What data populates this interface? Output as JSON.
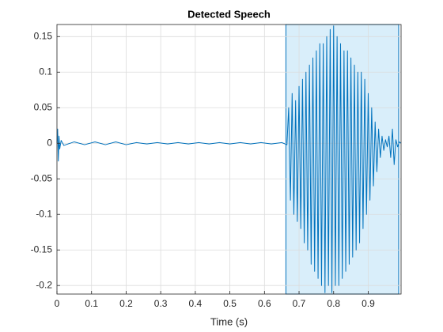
{
  "chart_data": {
    "type": "line",
    "title": "Detected Speech",
    "xlabel": "Time (s)",
    "color": "#0072bd",
    "grid": true,
    "speech_region": [
      0.662,
      0.988
    ],
    "region_color": "#d9eefa",
    "xlim": [
      0,
      0.995
    ],
    "xticks": [
      0,
      0.1,
      0.2,
      0.3,
      0.4,
      0.5,
      0.6,
      0.7,
      0.8,
      0.9
    ],
    "ylim": [
      -0.212,
      0.167
    ],
    "yticks": [
      -0.2,
      -0.15,
      -0.1,
      -0.05,
      0,
      0.05,
      0.1,
      0.15
    ],
    "x": [
      0,
      0.002,
      0.004,
      0.006,
      0.008,
      0.012,
      0.02,
      0.05,
      0.08,
      0.11,
      0.14,
      0.17,
      0.2,
      0.23,
      0.26,
      0.29,
      0.32,
      0.35,
      0.38,
      0.41,
      0.44,
      0.47,
      0.5,
      0.53,
      0.56,
      0.59,
      0.62,
      0.65,
      0.665,
      0.67,
      0.675,
      0.68,
      0.685,
      0.69,
      0.695,
      0.7,
      0.705,
      0.71,
      0.715,
      0.72,
      0.725,
      0.73,
      0.735,
      0.74,
      0.745,
      0.75,
      0.755,
      0.76,
      0.765,
      0.77,
      0.775,
      0.78,
      0.785,
      0.79,
      0.795,
      0.8,
      0.805,
      0.81,
      0.815,
      0.82,
      0.825,
      0.83,
      0.835,
      0.84,
      0.845,
      0.85,
      0.855,
      0.86,
      0.865,
      0.87,
      0.875,
      0.88,
      0.885,
      0.89,
      0.895,
      0.9,
      0.905,
      0.91,
      0.915,
      0.92,
      0.925,
      0.93,
      0.935,
      0.94,
      0.945,
      0.95,
      0.955,
      0.96,
      0.965,
      0.97,
      0.975,
      0.98,
      0.985,
      0.99,
      0.995
    ],
    "values": [
      0,
      0.02,
      -0.025,
      0.01,
      -0.008,
      0.004,
      -0.003,
      0.002,
      -0.002,
      0.002,
      -0.002,
      0.002,
      -0.002,
      0.001,
      -0.001,
      0.001,
      -0.001,
      0.001,
      -0.001,
      0.001,
      -0.001,
      0.001,
      -0.001,
      0.001,
      -0.001,
      0.001,
      -0.001,
      0.001,
      -0.002,
      0.05,
      -0.08,
      0.07,
      -0.1,
      0.06,
      -0.11,
      0.08,
      -0.12,
      0.09,
      -0.14,
      0.1,
      -0.15,
      0.11,
      -0.17,
      0.12,
      -0.18,
      0.13,
      -0.19,
      0.14,
      -0.2,
      0.14,
      -0.21,
      0.15,
      -0.2,
      0.16,
      -0.21,
      0.165,
      -0.2,
      0.15,
      -0.2,
      0.14,
      -0.19,
      0.13,
      -0.18,
      0.13,
      -0.17,
      0.12,
      -0.16,
      0.11,
      -0.15,
      0.1,
      -0.14,
      0.1,
      -0.12,
      0.09,
      -0.1,
      0.07,
      -0.08,
      0.05,
      -0.06,
      0.03,
      -0.04,
      0.02,
      -0.02,
      0.01,
      -0.01,
      0.005,
      -0.005,
      0.01,
      -0.02,
      0.02,
      -0.03,
      0.005,
      -0.005,
      0.002,
      0
    ]
  }
}
